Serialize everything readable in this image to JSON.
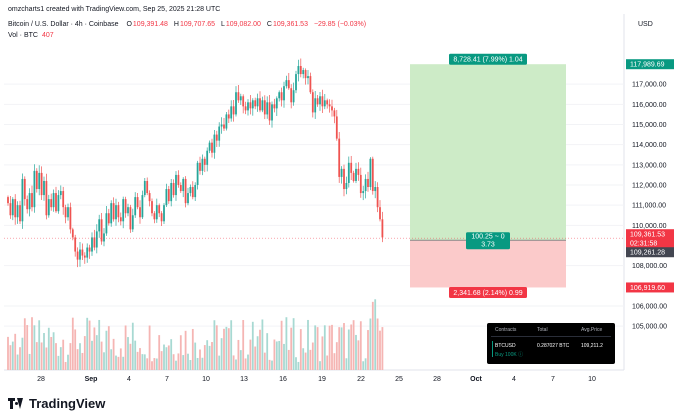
{
  "header": {
    "credit": "omzcharts1 created with TradingView.com, Sep 25, 2025 21:28 UTC",
    "currency": "USD",
    "symbol": "Bitcoin / U.S. Dollar · 4h · Coinbase",
    "ohlc": [
      {
        "k": "O",
        "v": "109,391.48"
      },
      {
        "k": "H",
        "v": "109,707.65"
      },
      {
        "k": "L",
        "v": "109,082.00"
      },
      {
        "k": "C",
        "v": "109,361.53"
      }
    ],
    "change": "−29.85 (−0.03%)",
    "vol_label": "Vol · BTC",
    "vol_value": "407"
  },
  "price_axis": {
    "ticks": [
      "117,000.00",
      "116,000.00",
      "115,000.00",
      "114,000.00",
      "113,000.00",
      "112,000.00",
      "111,000.00",
      "110,000.00",
      "108,000.00",
      "106,000.00",
      "105,000.00"
    ],
    "badges": {
      "target": "117,989.69",
      "last": "109,361.53",
      "countdown": "02:31:58",
      "entry": "109,261.28",
      "stop": "106,919.60"
    }
  },
  "time_axis": [
    "28",
    "Sep",
    "4",
    "7",
    "10",
    "13",
    "16",
    "19",
    "22",
    "25",
    "28",
    "Oct",
    "4",
    "7",
    "10"
  ],
  "position": {
    "profit_label": "8,728.41 (7.99%) 1.04",
    "entry_label_1": "100.25 ~ 0",
    "entry_label_2": "3.73",
    "loss_label": "2,341.68 (2.14%) 0.99"
  },
  "panel": {
    "headers": [
      "Contracts",
      "Total",
      "Avg.Price"
    ],
    "row1": [
      "BTCUSD",
      "0.287027 BTC",
      "109,211.2"
    ],
    "row2": [
      "Buy 100K ⓘ",
      "",
      ""
    ]
  },
  "colors": {
    "up": "#26a69a",
    "down": "#ef5350",
    "vol_up": "#a7d9d2",
    "vol_down": "#f5b5b3",
    "profit_zone": "#cdebc7",
    "loss_zone": "#fbcaca",
    "profit_badge": "#089981",
    "loss_badge": "#f23645"
  },
  "chart_data": {
    "type": "candlestick",
    "timeframe": "4h",
    "y_range": [
      104500,
      118700
    ],
    "x_tick_labels": [
      "28",
      "Sep",
      "4",
      "7",
      "10",
      "13",
      "16",
      "19",
      "22",
      "25",
      "28",
      "Oct",
      "4",
      "7",
      "10"
    ],
    "closes": [
      111100,
      110500,
      111300,
      110400,
      111000,
      110200,
      112300,
      111300,
      110800,
      111600,
      110900,
      112700,
      111800,
      112600,
      111500,
      112200,
      110500,
      111300,
      110900,
      111600,
      110700,
      111500,
      111700,
      110900,
      110400,
      110900,
      109800,
      109400,
      108700,
      108300,
      108800,
      108500,
      108400,
      108900,
      108700,
      109400,
      108900,
      109700,
      110300,
      109200,
      109600,
      110600,
      110100,
      111100,
      110300,
      111000,
      110400,
      110200,
      111300,
      110600,
      110900,
      109800,
      110500,
      111400,
      110900,
      110400,
      111500,
      112200,
      111600,
      111200,
      110600,
      110300,
      111000,
      110600,
      110200,
      111000,
      111800,
      111200,
      112100,
      111500,
      112500,
      112000,
      111700,
      112300,
      111100,
      111600,
      111900,
      111400,
      112000,
      113100,
      112700,
      113300,
      113000,
      113700,
      114100,
      113600,
      114500,
      114200,
      114900,
      115000,
      114800,
      115500,
      115300,
      115900,
      115500,
      116600,
      116200,
      116400,
      115900,
      115700,
      116100,
      115800,
      116200,
      115900,
      116300,
      115700,
      116200,
      115500,
      116100,
      115200,
      116000,
      115800,
      116300,
      116600,
      116200,
      116900,
      117200,
      116800,
      116100,
      116700,
      117500,
      117900,
      117500,
      117700,
      117300,
      117400,
      116600,
      115600,
      116300,
      116000,
      116400,
      115900,
      116200,
      116000,
      115900,
      115700,
      115400,
      114300,
      112400,
      112800,
      111800,
      112100,
      113100,
      112600,
      112200,
      112800,
      112500,
      111600,
      111700,
      112300,
      111900,
      113300,
      111700,
      111900,
      110900,
      110300,
      109400
    ],
    "position": {
      "side": "long",
      "entry": 109261.28,
      "target": 117989.69,
      "stop": 106919.6,
      "last": 109361.53
    }
  }
}
